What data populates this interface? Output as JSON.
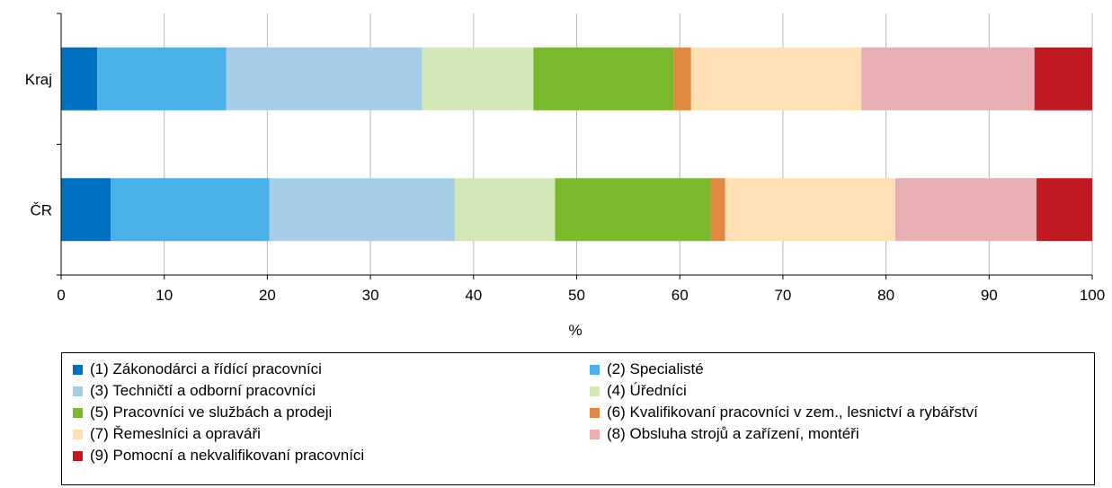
{
  "chart_data": {
    "type": "bar",
    "orientation": "horizontal",
    "stacked": true,
    "categories": [
      "Kraj",
      "ČR"
    ],
    "series": [
      {
        "name": "(1) Zákonodárci a řídící pracovníci",
        "color": "#0070c0",
        "values": [
          3.5,
          4.8
        ]
      },
      {
        "name": "(2) Specialisté",
        "color": "#49b0e8",
        "values": [
          12.5,
          15.4
        ]
      },
      {
        "name": "(3) Techničtí a odborní pracovníci",
        "color": "#a6cde8",
        "values": [
          19.0,
          18.0
        ]
      },
      {
        "name": "(4) Úředníci",
        "color": "#d3e8b8",
        "values": [
          10.8,
          9.7
        ]
      },
      {
        "name": "(5) Pracovníci ve službách a prodeji",
        "color": "#79b92b",
        "values": [
          13.6,
          15.1
        ]
      },
      {
        "name": "(6) Kvalifikovaní pracovníci v zem., lesnictví a rybářství",
        "color": "#e0883f",
        "values": [
          1.7,
          1.4
        ]
      },
      {
        "name": "(7) Řemeslníci a opraváři",
        "color": "#fde0b4",
        "values": [
          16.5,
          16.5
        ]
      },
      {
        "name": "(8) Obsluha strojů a zařízení, montéři",
        "color": "#e8afb2",
        "values": [
          16.8,
          13.7
        ]
      },
      {
        "name": "(9) Pomocní a nekvalifikovaní pracovníci",
        "color": "#c01b23",
        "values": [
          5.6,
          5.4
        ]
      }
    ],
    "xlabel": "%",
    "ylabel": "",
    "xlim": [
      0,
      100
    ],
    "xticks": [
      "0",
      "10",
      "20",
      "30",
      "40",
      "50",
      "60",
      "70",
      "80",
      "90",
      "100"
    ],
    "grid": true,
    "legend_position": "bottom"
  }
}
